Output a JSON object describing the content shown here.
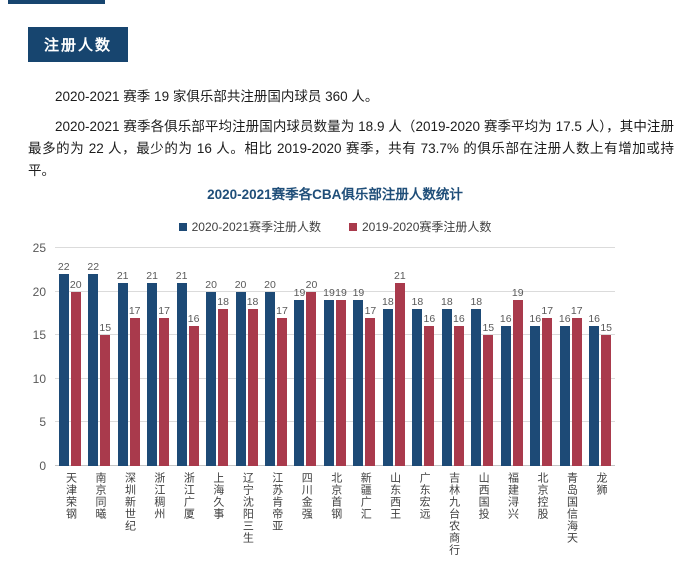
{
  "colors": {
    "navy": "#17456F",
    "bar_blue": "#1D4A76",
    "bar_red": "#A93A4C",
    "title_navy": "#1F4E79"
  },
  "section_badge": {
    "label": "注册人数"
  },
  "paragraphs": [
    "2020-2021 赛季 19 家俱乐部共注册国内球员 360 人。",
    "2020-2021 赛季各俱乐部平均注册国内球员数量为 18.9 人（2019-2020 赛季平均为 17.5 人），其中注册最多的为 22 人，最少的为 16 人。相比 2019-2020 赛季，共有 73.7% 的俱乐部在注册人数上有增加或持平。"
  ],
  "chart_data": {
    "type": "bar",
    "title": "2020-2021赛季各CBA俱乐部注册人数统计",
    "categories": [
      "天津荣钢",
      "南京同曦",
      "深圳新世纪",
      "浙江稠州",
      "浙江广厦",
      "上海久事",
      "辽宁沈阳三生",
      "江苏肯帝亚",
      "四川金强",
      "北京首钢",
      "新疆广汇",
      "山东西王",
      "广东宏远",
      "吉林九台农商行",
      "山西国投",
      "福建浔兴",
      "北京控股",
      "青岛国信海天",
      "龙狮"
    ],
    "series": [
      {
        "name": "2020-2021赛季注册人数",
        "color": "#1D4A76",
        "values": [
          22,
          22,
          21,
          21,
          21,
          20,
          20,
          20,
          19,
          19,
          19,
          18,
          18,
          18,
          18,
          16,
          16,
          16,
          16
        ]
      },
      {
        "name": "2019-2020赛季注册人数",
        "color": "#A93A4C",
        "values": [
          20,
          15,
          17,
          17,
          16,
          18,
          18,
          17,
          20,
          19,
          17,
          21,
          16,
          16,
          15,
          19,
          17,
          17,
          15
        ]
      }
    ],
    "xlabel": "",
    "ylabel": "",
    "ylim": [
      0,
      25
    ],
    "ytick_step": 5,
    "grid": true,
    "legend_position": "top",
    "data_labels": true
  }
}
